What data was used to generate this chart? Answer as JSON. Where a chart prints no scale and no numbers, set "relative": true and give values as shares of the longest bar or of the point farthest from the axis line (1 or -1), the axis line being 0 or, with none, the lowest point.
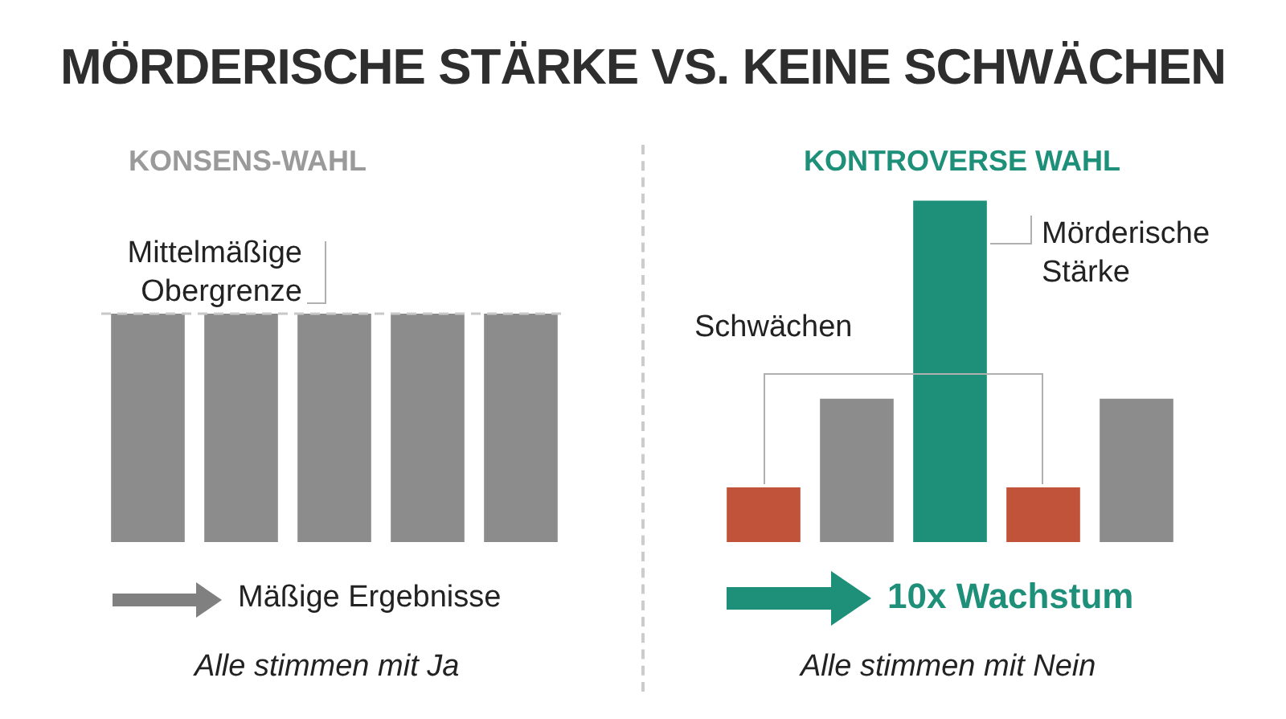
{
  "chart_data": [
    {
      "type": "bar",
      "title": "MÖRDERISCHE STÄRKE VS. KEINE SCHWÄCHEN",
      "subtitle": "KONSENS-WAHL",
      "relative": true,
      "categories": [
        null,
        null,
        null,
        null,
        null
      ],
      "values": [
        1,
        1,
        1,
        1,
        1
      ],
      "color": "#8c8c8c",
      "ref_lines": [
        {
          "axis": "y",
          "value": 1,
          "label": "Mittelmäßige Obergrenze",
          "color": "#c8c8c8",
          "line_style": "dashed"
        }
      ],
      "annotations": [
        "Mäßige Ergebnisse",
        "Alle stimmen mit Ja"
      ]
    },
    {
      "type": "bar",
      "subtitle": "KONTROVERSE WAHL",
      "relative": true,
      "categories": [
        null,
        null,
        null,
        null,
        null
      ],
      "values": [
        0.16,
        0.42,
        1,
        0.16,
        0.42
      ],
      "colors": [
        "#c0533a",
        "#8c8c8c",
        "#1e9079",
        "#c0533a",
        "#8c8c8c"
      ],
      "annotations": [
        "Schwächen",
        "Mörderische Stärke",
        "10x Wachstum",
        "Alle stimmen mit Nein"
      ]
    }
  ]
}
